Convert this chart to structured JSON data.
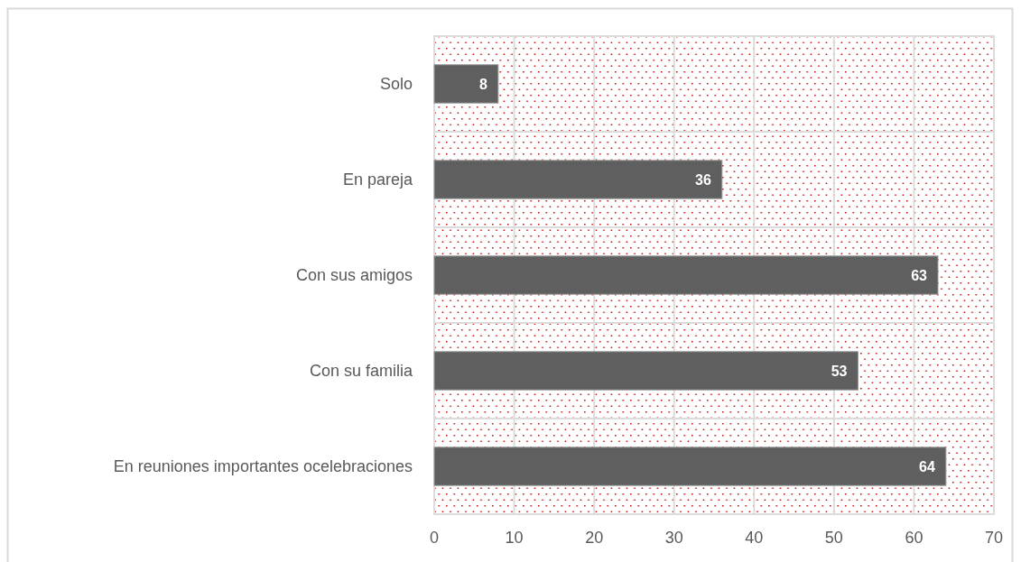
{
  "chart_data": {
    "type": "bar",
    "orientation": "horizontal",
    "categories": [
      "Solo",
      "En pareja",
      "Con sus amigos",
      "Con su familia",
      "En reuniones importantes ocelebraciones"
    ],
    "values": [
      8,
      36,
      63,
      53,
      64
    ],
    "color": "#5f5f5f",
    "xlim": [
      0,
      70
    ],
    "xticks": [
      0,
      10,
      20,
      30,
      40,
      50,
      60,
      70
    ],
    "grid": true,
    "data_labels": true
  }
}
